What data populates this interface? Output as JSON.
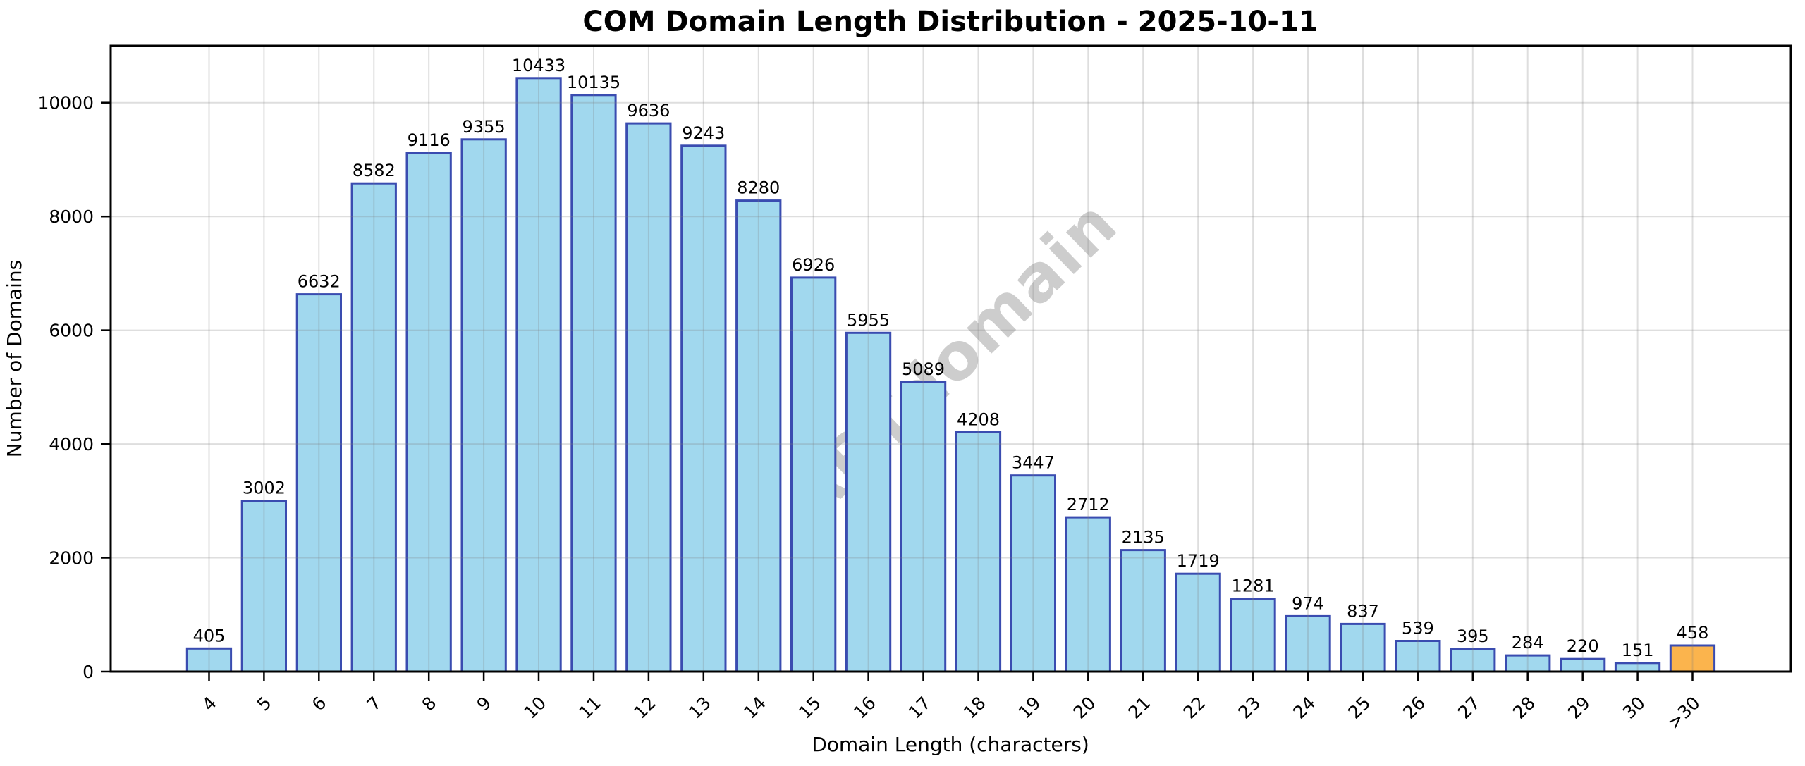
{
  "watermark": "ABTdomain",
  "chart_data": {
    "type": "bar",
    "title": "COM Domain Length Distribution - 2025-10-11",
    "xlabel": "Domain Length (characters)",
    "ylabel": "Number of Domains",
    "categories": [
      "4",
      "5",
      "6",
      "7",
      "8",
      "9",
      "10",
      "11",
      "12",
      "13",
      "14",
      "15",
      "16",
      "17",
      "18",
      "19",
      "20",
      "21",
      "22",
      "23",
      "24",
      "25",
      "26",
      "27",
      "28",
      "29",
      "30",
      ">30"
    ],
    "values": [
      405,
      3002,
      6632,
      8582,
      9116,
      9355,
      10433,
      10135,
      9636,
      9243,
      8280,
      6926,
      5955,
      5089,
      4208,
      3447,
      2712,
      2135,
      1719,
      1281,
      974,
      837,
      539,
      395,
      284,
      220,
      151,
      458
    ],
    "ylim": [
      0,
      11000
    ],
    "yticks": [
      0,
      2000,
      4000,
      6000,
      8000,
      10000
    ],
    "grid": true,
    "legend": "none",
    "bar_fill": "#A1D8EE",
    "bar_edge": "#3A4CB0",
    "highlight_index": 27,
    "highlight_fill": "#FBB44D",
    "grid_color": "#808080",
    "axis_color": "#000000",
    "watermark_color": "#CDCDCD"
  }
}
